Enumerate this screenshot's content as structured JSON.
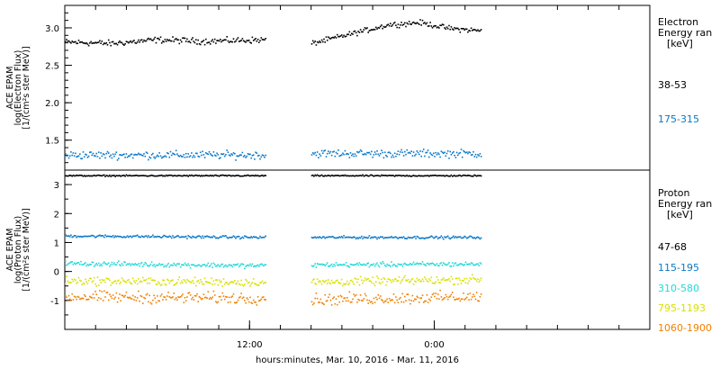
{
  "colors": {
    "frame": "#000000",
    "ch1": "#000000",
    "ch2": "#0a78c8",
    "ch3": "#22d8d8",
    "ch4": "#d8e000",
    "ch5": "#f08000"
  },
  "xaxis": {
    "title": "hours:minutes, Mar. 10, 2016 - Mar. 11, 2016",
    "range_hours": [
      0,
      38
    ],
    "ticks": [
      {
        "hour": 12,
        "label": "12:00"
      },
      {
        "hour": 24,
        "label": "0:00"
      }
    ],
    "minor_tick_step_hours": 2,
    "gap_hours": [
      14,
      16
    ]
  },
  "electron_panel": {
    "ylabel_lines": [
      "ACE EPAM",
      "log(Electron Flux)",
      "[1/(cm²s ster MeV)]"
    ],
    "legend_title_lines": [
      "Electron",
      "Energy ran",
      "[keV]"
    ],
    "legend_entries": [
      {
        "label": "38-53",
        "color_key": "ch1"
      },
      {
        "label": "175-315",
        "color_key": "ch2"
      }
    ],
    "yticks": [
      "1.5",
      "2.0",
      "2.5",
      "3.0"
    ]
  },
  "proton_panel": {
    "ylabel_lines": [
      "ACE EPAM",
      "log(Proton Flux)",
      "[1/(cm²s ster MeV)]"
    ],
    "legend_title_lines": [
      "Proton",
      "Energy ran",
      "[keV]"
    ],
    "legend_entries": [
      {
        "label": "47-68",
        "color_key": "ch1"
      },
      {
        "label": "115-195",
        "color_key": "ch2"
      },
      {
        "label": "310-580",
        "color_key": "ch3"
      },
      {
        "label": "795-1193",
        "color_key": "ch4"
      },
      {
        "label": "1060-1900",
        "color_key": "ch5"
      }
    ],
    "yticks": [
      "-1",
      "0",
      "1",
      "2",
      "3"
    ]
  },
  "chart_data": [
    {
      "type": "scatter",
      "panel": "electron",
      "xlabel": "",
      "ylabel": "ACE EPAM log(Electron Flux) [1/(cm²s ster MeV)]",
      "ylim": [
        1.1,
        3.3
      ],
      "xlim": [
        0,
        38
      ],
      "series": [
        {
          "name": "38-53",
          "color_key": "ch1",
          "segments": [
            {
              "x_range": [
                0,
                13
              ],
              "y_profile": [
                [
                  0,
                  2.82
                ],
                [
                  3,
                  2.8
                ],
                [
                  6,
                  2.85
                ],
                [
                  9,
                  2.83
                ],
                [
                  13,
                  2.85
                ]
              ],
              "noise": 0.035
            },
            {
              "x_range": [
                16,
                27
              ],
              "y_profile": [
                [
                  16,
                  2.8
                ],
                [
                  18,
                  2.9
                ],
                [
                  21,
                  3.05
                ],
                [
                  23,
                  3.08
                ],
                [
                  25,
                  3.0
                ],
                [
                  27,
                  2.97
                ]
              ],
              "noise": 0.03
            }
          ]
        },
        {
          "name": "175-315",
          "color_key": "ch2",
          "segments": [
            {
              "x_range": [
                0,
                13
              ],
              "y_profile": [
                [
                  0,
                  1.31
                ],
                [
                  13,
                  1.31
                ]
              ],
              "noise": 0.045
            },
            {
              "x_range": [
                16,
                27
              ],
              "y_profile": [
                [
                  16,
                  1.33
                ],
                [
                  27,
                  1.33
                ]
              ],
              "noise": 0.045
            }
          ]
        }
      ]
    },
    {
      "type": "scatter",
      "panel": "proton",
      "xlabel": "hours:minutes, Mar. 10, 2016 - Mar. 11, 2016",
      "ylabel": "ACE EPAM log(Proton Flux) [1/(cm²s ster MeV)]",
      "ylim": [
        -2.0,
        3.5
      ],
      "xlim": [
        0,
        38
      ],
      "series": [
        {
          "name": "47-68",
          "color_key": "ch1",
          "segments": [
            {
              "x_range": [
                0,
                13
              ],
              "y_profile": [
                [
                  0,
                  3.33
                ],
                [
                  13,
                  3.33
                ]
              ],
              "noise": 0.02
            },
            {
              "x_range": [
                16,
                27
              ],
              "y_profile": [
                [
                  16,
                  3.33
                ],
                [
                  27,
                  3.33
                ]
              ],
              "noise": 0.02
            }
          ]
        },
        {
          "name": "115-195",
          "color_key": "ch2",
          "segments": [
            {
              "x_range": [
                0,
                13
              ],
              "y_profile": [
                [
                  0,
                  1.25
                ],
                [
                  13,
                  1.2
                ]
              ],
              "noise": 0.04
            },
            {
              "x_range": [
                16,
                27
              ],
              "y_profile": [
                [
                  16,
                  1.2
                ],
                [
                  27,
                  1.2
                ]
              ],
              "noise": 0.04
            }
          ]
        },
        {
          "name": "310-580",
          "color_key": "ch3",
          "segments": [
            {
              "x_range": [
                0,
                13
              ],
              "y_profile": [
                [
                  0,
                  0.3
                ],
                [
                  13,
                  0.22
                ]
              ],
              "noise": 0.07
            },
            {
              "x_range": [
                16,
                27
              ],
              "y_profile": [
                [
                  16,
                  0.25
                ],
                [
                  27,
                  0.28
                ]
              ],
              "noise": 0.07
            }
          ]
        },
        {
          "name": "795-1193",
          "color_key": "ch4",
          "segments": [
            {
              "x_range": [
                0,
                13
              ],
              "y_profile": [
                [
                  0,
                  -0.3
                ],
                [
                  13,
                  -0.35
                ]
              ],
              "noise": 0.12
            },
            {
              "x_range": [
                16,
                27
              ],
              "y_profile": [
                [
                  16,
                  -0.35
                ],
                [
                  27,
                  -0.25
                ]
              ],
              "noise": 0.12
            }
          ]
        },
        {
          "name": "1060-1900",
          "color_key": "ch5",
          "segments": [
            {
              "x_range": [
                0,
                13
              ],
              "y_profile": [
                [
                  0,
                  -0.85
                ],
                [
                  13,
                  -0.9
                ]
              ],
              "noise": 0.17
            },
            {
              "x_range": [
                16,
                27
              ],
              "y_profile": [
                [
                  16,
                  -0.95
                ],
                [
                  27,
                  -0.85
                ]
              ],
              "noise": 0.17
            }
          ]
        }
      ]
    }
  ]
}
